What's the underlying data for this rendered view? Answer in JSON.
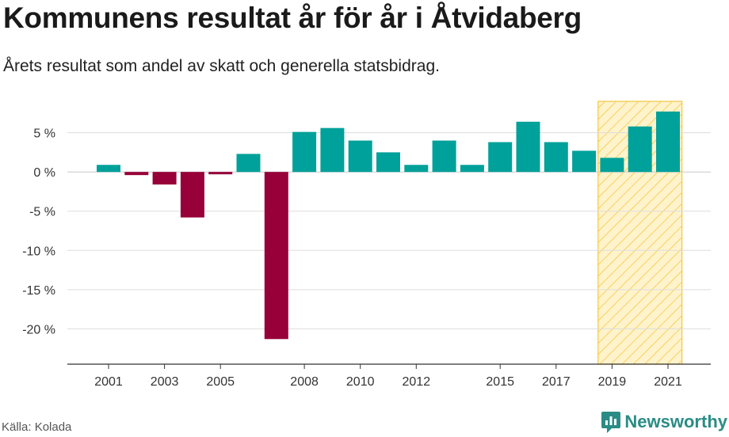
{
  "title": "Kommunens resultat år för år i Åtvidaberg",
  "subtitle": "Årets resultat som andel av skatt och generella statsbidrag.",
  "source": "Källa: Kolada",
  "brand": "Newsworthy",
  "colors": {
    "positive": "#00a19a",
    "negative": "#970038",
    "highlight_fill": "#fff1c4",
    "highlight_stroke": "#f4c842",
    "grid": "#dddddd",
    "axis": "#333333",
    "brand": "#2a8c85"
  },
  "chart_data": {
    "type": "bar",
    "x": [
      2001,
      2002,
      2003,
      2004,
      2005,
      2006,
      2007,
      2008,
      2009,
      2010,
      2011,
      2012,
      2013,
      2014,
      2015,
      2016,
      2017,
      2018,
      2019,
      2020,
      2021
    ],
    "values": [
      0.9,
      -0.4,
      -1.6,
      -5.8,
      -0.3,
      2.3,
      -21.3,
      5.1,
      5.6,
      4.0,
      2.5,
      0.9,
      4.0,
      0.9,
      3.8,
      6.4,
      3.8,
      2.7,
      1.8,
      5.8,
      7.7
    ],
    "x_tick_labels": [
      "2001",
      "2003",
      "2005",
      "2008",
      "2010",
      "2012",
      "2015",
      "2017",
      "2019",
      "2021"
    ],
    "y_ticks": [
      5,
      0,
      -5,
      -10,
      -15,
      -20
    ],
    "y_tick_labels": [
      "5 %",
      "0 %",
      "-5 %",
      "-10 %",
      "-15 %",
      "-20 %"
    ],
    "ylim": [
      -24.5,
      9
    ],
    "highlight_range": [
      2019,
      2021
    ],
    "grid": true
  }
}
